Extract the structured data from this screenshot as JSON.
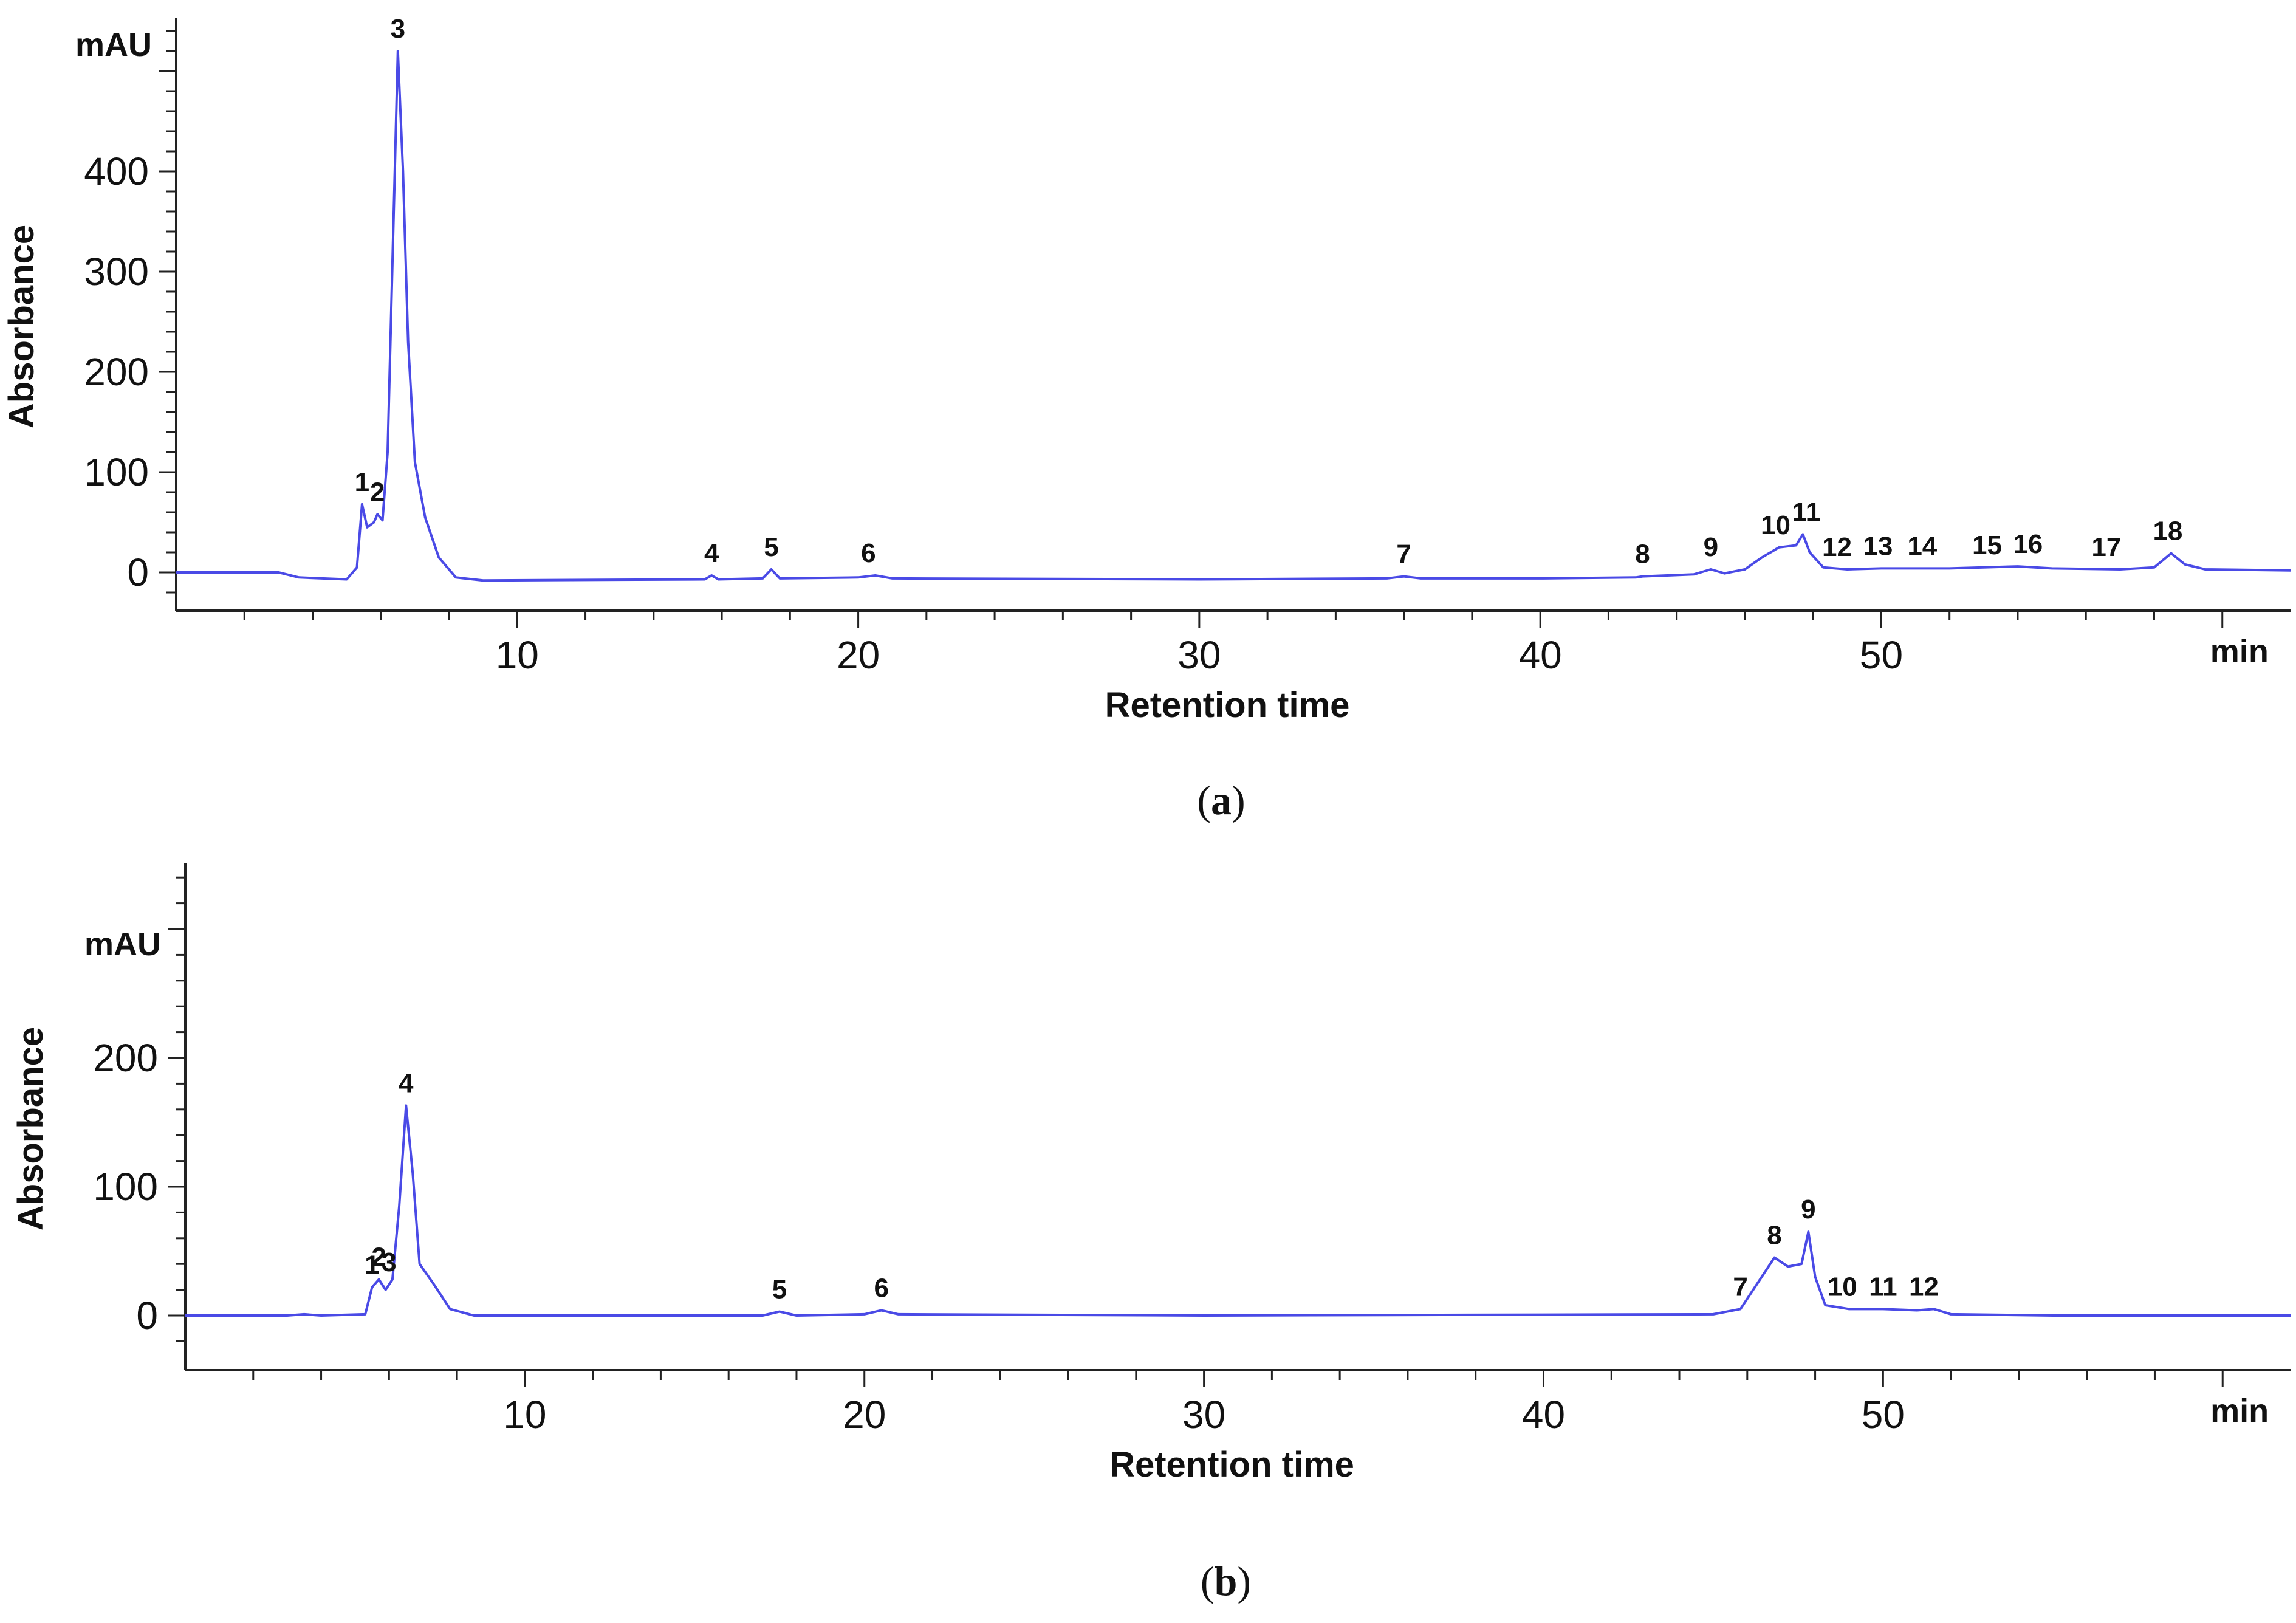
{
  "chart_data": [
    {
      "panel": "(a)",
      "panel_letter": "a",
      "type": "line",
      "ylabel": "Absorbance",
      "xlabel": "Retention time",
      "y_unit": "mAU",
      "x_unit": "min",
      "xlim": [
        0,
        62
      ],
      "ylim": [
        -40,
        560
      ],
      "yticks": [
        0,
        100,
        200,
        300,
        400
      ],
      "xticks": [
        10,
        20,
        30,
        40,
        50
      ],
      "grid": false,
      "series": [
        {
          "color": "#4a4ae6",
          "points": [
            [
              0,
              0
            ],
            [
              3,
              0
            ],
            [
              3.6,
              -5
            ],
            [
              5.0,
              -7
            ],
            [
              5.3,
              5
            ],
            [
              5.45,
              68
            ],
            [
              5.6,
              45
            ],
            [
              5.8,
              50
            ],
            [
              5.9,
              58
            ],
            [
              6.05,
              52
            ],
            [
              6.2,
              120
            ],
            [
              6.35,
              320
            ],
            [
              6.5,
              520
            ],
            [
              6.65,
              400
            ],
            [
              6.8,
              230
            ],
            [
              7.0,
              110
            ],
            [
              7.3,
              55
            ],
            [
              7.7,
              15
            ],
            [
              8.2,
              -5
            ],
            [
              9,
              -8
            ],
            [
              15.5,
              -7
            ],
            [
              15.7,
              -3
            ],
            [
              15.9,
              -7
            ],
            [
              17.2,
              -6
            ],
            [
              17.45,
              3
            ],
            [
              17.7,
              -6
            ],
            [
              20,
              -5
            ],
            [
              20.5,
              -3
            ],
            [
              21,
              -6
            ],
            [
              30,
              -7
            ],
            [
              35.5,
              -6
            ],
            [
              36,
              -4
            ],
            [
              36.5,
              -6
            ],
            [
              40,
              -6
            ],
            [
              42.8,
              -5
            ],
            [
              43,
              -4
            ],
            [
              44.5,
              -2
            ],
            [
              45,
              3
            ],
            [
              45.4,
              -1
            ],
            [
              46,
              3
            ],
            [
              46.5,
              15
            ],
            [
              47.0,
              25
            ],
            [
              47.5,
              27
            ],
            [
              47.7,
              38
            ],
            [
              47.9,
              20
            ],
            [
              48.3,
              5
            ],
            [
              49,
              3
            ],
            [
              50,
              4
            ],
            [
              52,
              4
            ],
            [
              53,
              5
            ],
            [
              54,
              6
            ],
            [
              55,
              4
            ],
            [
              57,
              3
            ],
            [
              58,
              5
            ],
            [
              58.5,
              19
            ],
            [
              58.9,
              8
            ],
            [
              59.5,
              3
            ],
            [
              62,
              2
            ]
          ]
        }
      ],
      "peak_labels": [
        {
          "label": "1",
          "x": 5.45,
          "y": 68
        },
        {
          "label": "2",
          "x": 5.9,
          "y": 58
        },
        {
          "label": "3",
          "x": 6.5,
          "y": 520
        },
        {
          "label": "4",
          "x": 15.7,
          "y": -3
        },
        {
          "label": "5",
          "x": 17.45,
          "y": 3
        },
        {
          "label": "6",
          "x": 20.3,
          "y": -3
        },
        {
          "label": "7",
          "x": 36.0,
          "y": -4
        },
        {
          "label": "8",
          "x": 43.0,
          "y": -4
        },
        {
          "label": "9",
          "x": 45.0,
          "y": 3
        },
        {
          "label": "10",
          "x": 46.9,
          "y": 25
        },
        {
          "label": "11",
          "x": 47.8,
          "y": 38
        },
        {
          "label": "12",
          "x": 48.7,
          "y": 3
        },
        {
          "label": "13",
          "x": 49.9,
          "y": 4
        },
        {
          "label": "14",
          "x": 51.2,
          "y": 4
        },
        {
          "label": "15",
          "x": 53.1,
          "y": 5
        },
        {
          "label": "16",
          "x": 54.3,
          "y": 6
        },
        {
          "label": "17",
          "x": 56.6,
          "y": 3
        },
        {
          "label": "18",
          "x": 58.4,
          "y": 19
        }
      ]
    },
    {
      "panel": "(b)",
      "panel_letter": "b",
      "type": "line",
      "ylabel": "Absorbance",
      "xlabel": "Retention time",
      "y_unit": "mAU",
      "x_unit": "min",
      "xlim": [
        0,
        62
      ],
      "ylim": [
        -40,
        350
      ],
      "yticks": [
        0,
        100,
        200
      ],
      "xticks": [
        10,
        20,
        30,
        40,
        50
      ],
      "grid": false,
      "series": [
        {
          "color": "#4a4ae6",
          "points": [
            [
              0,
              0
            ],
            [
              3,
              0
            ],
            [
              3.5,
              1
            ],
            [
              4,
              0
            ],
            [
              5.3,
              1
            ],
            [
              5.5,
              22
            ],
            [
              5.7,
              28
            ],
            [
              5.9,
              20
            ],
            [
              6.1,
              28
            ],
            [
              6.3,
              85
            ],
            [
              6.5,
              163
            ],
            [
              6.7,
              110
            ],
            [
              6.9,
              40
            ],
            [
              7.3,
              25
            ],
            [
              7.8,
              5
            ],
            [
              8.5,
              0
            ],
            [
              17,
              0
            ],
            [
              17.5,
              3
            ],
            [
              18,
              0
            ],
            [
              20,
              1
            ],
            [
              20.5,
              4
            ],
            [
              21,
              1
            ],
            [
              30,
              0
            ],
            [
              45,
              1
            ],
            [
              45.8,
              5
            ],
            [
              46.3,
              25
            ],
            [
              46.8,
              45
            ],
            [
              47.2,
              38
            ],
            [
              47.6,
              40
            ],
            [
              47.8,
              65
            ],
            [
              48.0,
              30
            ],
            [
              48.3,
              8
            ],
            [
              49,
              5
            ],
            [
              50,
              5
            ],
            [
              51,
              4
            ],
            [
              51.5,
              5
            ],
            [
              52,
              1
            ],
            [
              55,
              0
            ],
            [
              62,
              0
            ]
          ]
        }
      ],
      "peak_labels": [
        {
          "label": "1",
          "x": 5.5,
          "y": 22
        },
        {
          "label": "2",
          "x": 5.7,
          "y": 28
        },
        {
          "label": "3",
          "x": 6.0,
          "y": 24
        },
        {
          "label": "4",
          "x": 6.5,
          "y": 163
        },
        {
          "label": "5",
          "x": 17.5,
          "y": 3
        },
        {
          "label": "6",
          "x": 20.5,
          "y": 4
        },
        {
          "label": "7",
          "x": 45.8,
          "y": 5
        },
        {
          "label": "8",
          "x": 46.8,
          "y": 45
        },
        {
          "label": "9",
          "x": 47.8,
          "y": 65
        },
        {
          "label": "10",
          "x": 48.8,
          "y": 5
        },
        {
          "label": "11",
          "x": 50.0,
          "y": 5
        },
        {
          "label": "12",
          "x": 51.2,
          "y": 5
        }
      ]
    }
  ]
}
